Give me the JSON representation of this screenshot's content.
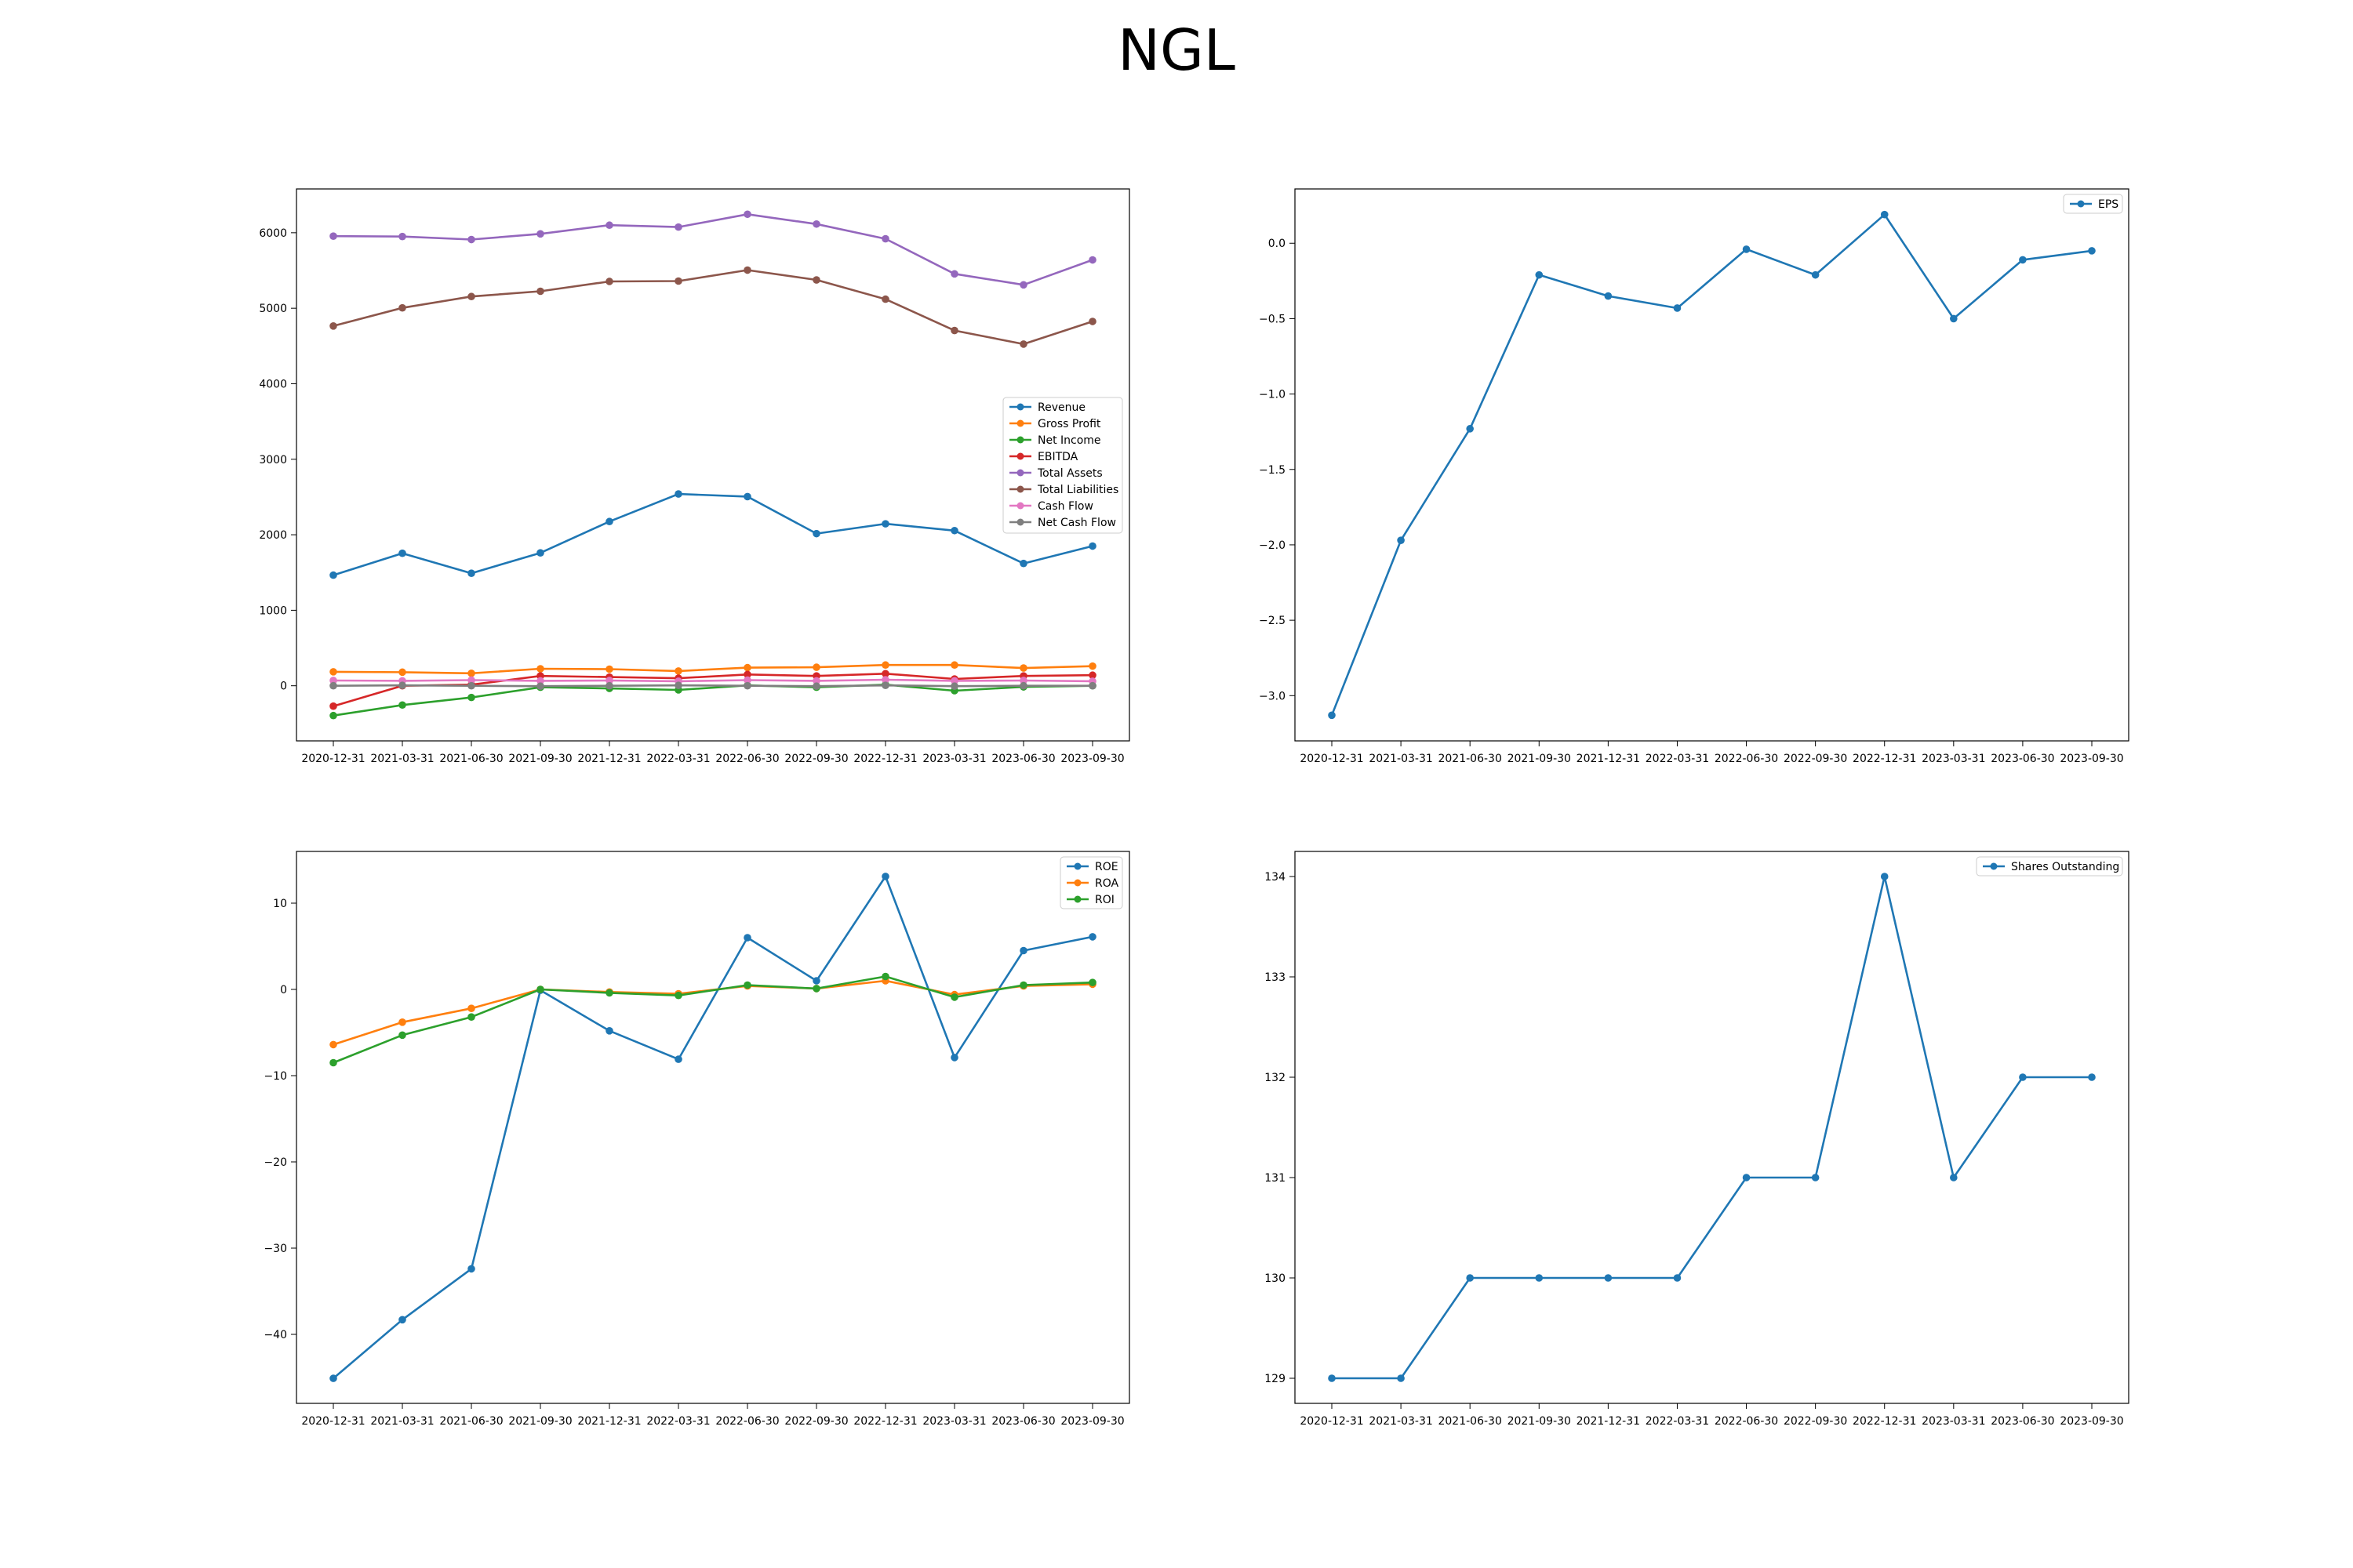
{
  "title": "NGL",
  "x_labels": [
    "2020-12-31",
    "2021-03-31",
    "2021-06-30",
    "2021-09-30",
    "2021-12-31",
    "2022-03-31",
    "2022-06-30",
    "2022-09-30",
    "2022-12-31",
    "2023-03-31",
    "2023-06-30",
    "2023-09-30"
  ],
  "chart_data": [
    {
      "type": "line",
      "categories": [
        "2020-12-31",
        "2021-03-31",
        "2021-06-30",
        "2021-09-30",
        "2021-12-31",
        "2022-03-31",
        "2022-06-30",
        "2022-09-30",
        "2022-12-31",
        "2023-03-31",
        "2023-06-30",
        "2023-09-30"
      ],
      "ylim": [
        -730,
        6580
      ],
      "yticks": [
        0,
        1000,
        2000,
        3000,
        4000,
        5000,
        6000
      ],
      "legend": "center-right",
      "series": [
        {
          "name": "Revenue",
          "color": "#1f77b4",
          "values": [
            1465,
            1755,
            1490,
            1760,
            2175,
            2540,
            2505,
            2015,
            2145,
            2055,
            1620,
            1850
          ]
        },
        {
          "name": "Gross Profit",
          "color": "#ff7f0e",
          "values": [
            185,
            180,
            165,
            225,
            220,
            195,
            240,
            245,
            275,
            275,
            235,
            260
          ]
        },
        {
          "name": "Net Income",
          "color": "#2ca02c",
          "values": [
            -395,
            -255,
            -155,
            -20,
            -35,
            -55,
            5,
            -20,
            15,
            -65,
            -15,
            0
          ]
        },
        {
          "name": "EBITDA",
          "color": "#d62728",
          "values": [
            -270,
            0,
            15,
            130,
            115,
            100,
            150,
            130,
            160,
            90,
            130,
            140
          ]
        },
        {
          "name": "Total Assets",
          "color": "#9467bd",
          "values": [
            5955,
            5950,
            5910,
            5985,
            6100,
            6075,
            6245,
            6115,
            5920,
            5455,
            5310,
            5640
          ]
        },
        {
          "name": "Total Liabilities",
          "color": "#8c564b",
          "values": [
            4765,
            5005,
            5155,
            5225,
            5355,
            5360,
            5505,
            5375,
            5120,
            4705,
            4525,
            4825
          ]
        },
        {
          "name": "Cash Flow",
          "color": "#e377c2",
          "values": [
            70,
            65,
            75,
            65,
            70,
            60,
            75,
            65,
            80,
            65,
            70,
            60
          ]
        },
        {
          "name": "Net Cash Flow",
          "color": "#7f7f7f",
          "values": [
            0,
            5,
            0,
            -5,
            0,
            5,
            0,
            -5,
            5,
            -5,
            0,
            0
          ]
        }
      ]
    },
    {
      "type": "line",
      "categories": [
        "2020-12-31",
        "2021-03-31",
        "2021-06-30",
        "2021-09-30",
        "2021-12-31",
        "2022-03-31",
        "2022-06-30",
        "2022-09-30",
        "2022-12-31",
        "2023-03-31",
        "2023-06-30",
        "2023-09-30"
      ],
      "ylim": [
        -3.3,
        0.36
      ],
      "yticks": [
        -3.0,
        -2.5,
        -2.0,
        -1.5,
        -1.0,
        -0.5,
        0.0
      ],
      "ytick_labels": [
        "−3.0",
        "−2.5",
        "−2.0",
        "−1.5",
        "−1.0",
        "−0.5",
        "0.0"
      ],
      "legend": "top-right",
      "series": [
        {
          "name": "EPS",
          "color": "#1f77b4",
          "values": [
            -3.13,
            -1.97,
            -1.23,
            -0.21,
            -0.35,
            -0.43,
            -0.04,
            -0.21,
            0.19,
            -0.5,
            -0.11,
            -0.05
          ]
        }
      ]
    },
    {
      "type": "line",
      "categories": [
        "2020-12-31",
        "2021-03-31",
        "2021-06-30",
        "2021-09-30",
        "2021-12-31",
        "2022-03-31",
        "2022-06-30",
        "2022-09-30",
        "2022-12-31",
        "2023-03-31",
        "2023-06-30",
        "2023-09-30"
      ],
      "ylim": [
        -48,
        16
      ],
      "yticks": [
        -40,
        -30,
        -20,
        -10,
        0,
        10
      ],
      "ytick_labels": [
        "−40",
        "−30",
        "−20",
        "−10",
        "0",
        "10"
      ],
      "legend": "top-right",
      "series": [
        {
          "name": "ROE",
          "color": "#1f77b4",
          "values": [
            -45.1,
            -38.3,
            -32.4,
            -0.1,
            -4.8,
            -8.1,
            6.0,
            1.0,
            13.1,
            -7.9,
            4.5,
            6.1
          ]
        },
        {
          "name": "ROA",
          "color": "#ff7f0e",
          "values": [
            -6.4,
            -3.8,
            -2.2,
            0.0,
            -0.3,
            -0.5,
            0.4,
            0.1,
            1.0,
            -0.6,
            0.4,
            0.6
          ]
        },
        {
          "name": "ROI",
          "color": "#2ca02c",
          "values": [
            -8.5,
            -5.3,
            -3.2,
            0.0,
            -0.4,
            -0.7,
            0.5,
            0.1,
            1.5,
            -0.9,
            0.5,
            0.8
          ]
        }
      ]
    },
    {
      "type": "line",
      "categories": [
        "2020-12-31",
        "2021-03-31",
        "2021-06-30",
        "2021-09-30",
        "2021-12-31",
        "2022-03-31",
        "2022-06-30",
        "2022-09-30",
        "2022-12-31",
        "2023-03-31",
        "2023-06-30",
        "2023-09-30"
      ],
      "ylim": [
        128.75,
        134.25
      ],
      "yticks": [
        129,
        130,
        131,
        132,
        133,
        134
      ],
      "legend": "top-right",
      "series": [
        {
          "name": "Shares Outstanding",
          "color": "#1f77b4",
          "values": [
            129,
            129,
            130,
            130,
            130,
            130,
            131,
            131,
            134,
            131,
            132,
            132
          ]
        }
      ]
    }
  ]
}
